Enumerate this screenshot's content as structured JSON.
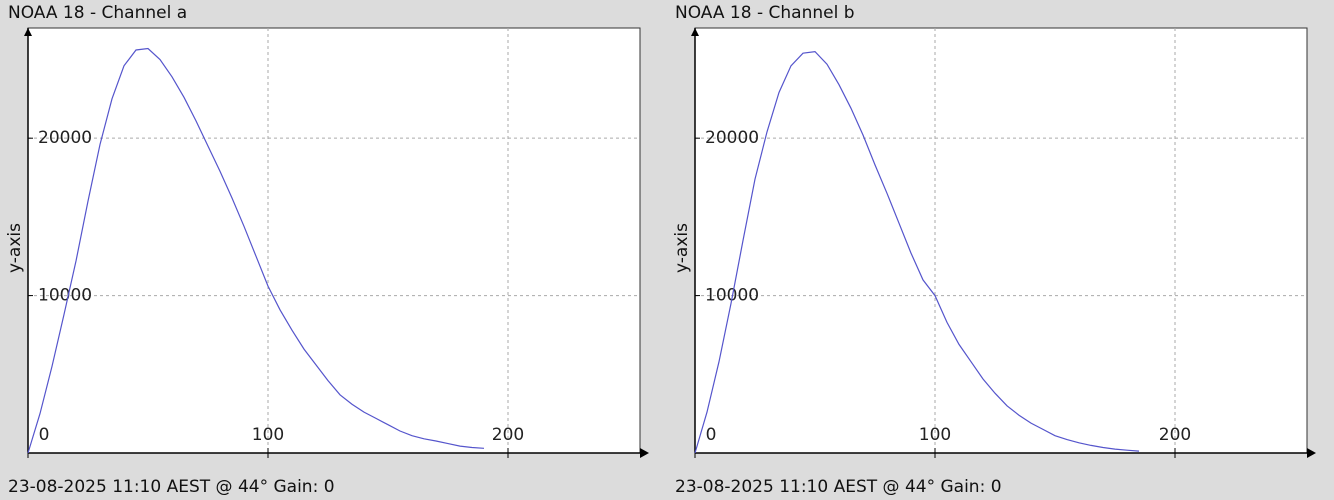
{
  "chart_data": [
    {
      "type": "line",
      "title": "NOAA 18 - Channel a",
      "caption": "23-08-2025 11:10 AEST @ 44° Gain: 0",
      "y_label": "y-axis",
      "color": "#5555cc",
      "x": [
        0,
        5,
        10,
        15,
        20,
        25,
        30,
        35,
        40,
        45,
        50,
        55,
        60,
        65,
        70,
        75,
        80,
        85,
        90,
        95,
        100,
        105,
        110,
        115,
        120,
        125,
        130,
        135,
        140,
        145,
        150,
        155,
        160,
        165,
        170,
        175,
        180,
        185,
        190
      ],
      "values": [
        0,
        2500,
        5500,
        8800,
        12200,
        16000,
        19600,
        22500,
        24600,
        25600,
        25700,
        25000,
        23900,
        22600,
        21100,
        19500,
        17900,
        16200,
        14400,
        12500,
        10600,
        9100,
        7800,
        6600,
        5600,
        4600,
        3700,
        3100,
        2600,
        2200,
        1800,
        1400,
        1100,
        900,
        760,
        600,
        440,
        350,
        300
      ],
      "xlim": [
        0,
        255
      ],
      "ylim": [
        0,
        27000
      ],
      "xticks": [
        0,
        100,
        200
      ],
      "yticks": [
        10000,
        20000
      ],
      "grid": true
    },
    {
      "type": "line",
      "title": "NOAA 18 - Channel b",
      "caption": "23-08-2025 11:10 AEST @ 44° Gain: 0",
      "y_label": "y-axis",
      "color": "#5555cc",
      "x": [
        0,
        5,
        10,
        15,
        20,
        25,
        30,
        35,
        40,
        45,
        50,
        55,
        60,
        65,
        70,
        75,
        80,
        85,
        90,
        95,
        100,
        105,
        110,
        115,
        120,
        125,
        130,
        135,
        140,
        145,
        150,
        155,
        160,
        165,
        170,
        175,
        180,
        185
      ],
      "values": [
        0,
        2600,
        5800,
        9500,
        13500,
        17400,
        20400,
        22900,
        24600,
        25400,
        25500,
        24700,
        23400,
        21900,
        20200,
        18300,
        16500,
        14600,
        12700,
        11000,
        10000,
        8300,
        6900,
        5800,
        4700,
        3800,
        3000,
        2400,
        1900,
        1500,
        1100,
        850,
        650,
        480,
        350,
        250,
        180,
        120
      ],
      "xlim": [
        0,
        255
      ],
      "ylim": [
        0,
        27000
      ],
      "xticks": [
        0,
        100,
        200
      ],
      "yticks": [
        10000,
        20000
      ],
      "grid": true
    }
  ]
}
